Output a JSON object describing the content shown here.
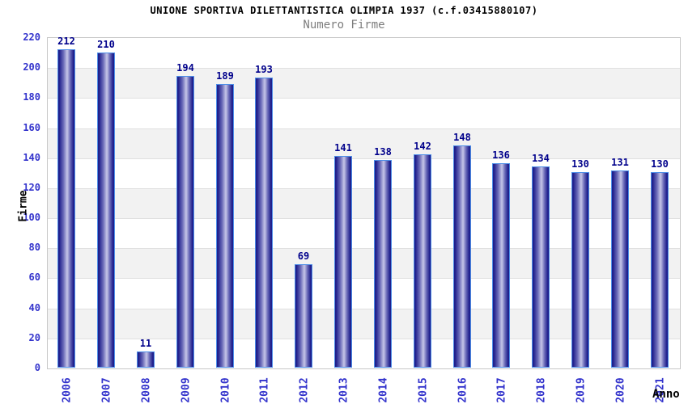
{
  "header": {
    "title": "UNIONE SPORTIVA DILETTANTISTICA OLIMPIA 1937 (c.f.03415880107)",
    "subtitle": "Numero Firme"
  },
  "chart_data": {
    "type": "bar",
    "title": "UNIONE SPORTIVA DILETTANTISTICA OLIMPIA 1937 (c.f.03415880107)",
    "subtitle": "Numero Firme",
    "xlabel": "Anno",
    "ylabel": "Firme",
    "categories": [
      "2006",
      "2007",
      "2008",
      "2009",
      "2010",
      "2011",
      "2012",
      "2013",
      "2014",
      "2015",
      "2016",
      "2017",
      "2018",
      "2019",
      "2020",
      "2021"
    ],
    "values": [
      212,
      210,
      11,
      194,
      189,
      193,
      69,
      141,
      138,
      142,
      148,
      136,
      134,
      130,
      131,
      130
    ],
    "ylim": [
      0,
      220
    ],
    "ytick_step": 20,
    "yticks": [
      0,
      20,
      40,
      60,
      80,
      100,
      120,
      140,
      160,
      180,
      200,
      220
    ],
    "grid": true,
    "alternating_bands": true,
    "legend": "none",
    "colors": {
      "bar_dark": "#1f1f8c",
      "bar_mid": "#6a6ab8",
      "bar_light": "#c6c6e8",
      "bar_border": "#4d8ee8",
      "axis_tick_text": "#3333cc",
      "value_label": "#00008b",
      "band": "#f2f2f2",
      "gridline": "#e0e0e0",
      "plot_border": "#c8c8c8",
      "title_text": "#000000",
      "subtitle_text": "#7d7d7d",
      "background": "#ffffff"
    }
  }
}
